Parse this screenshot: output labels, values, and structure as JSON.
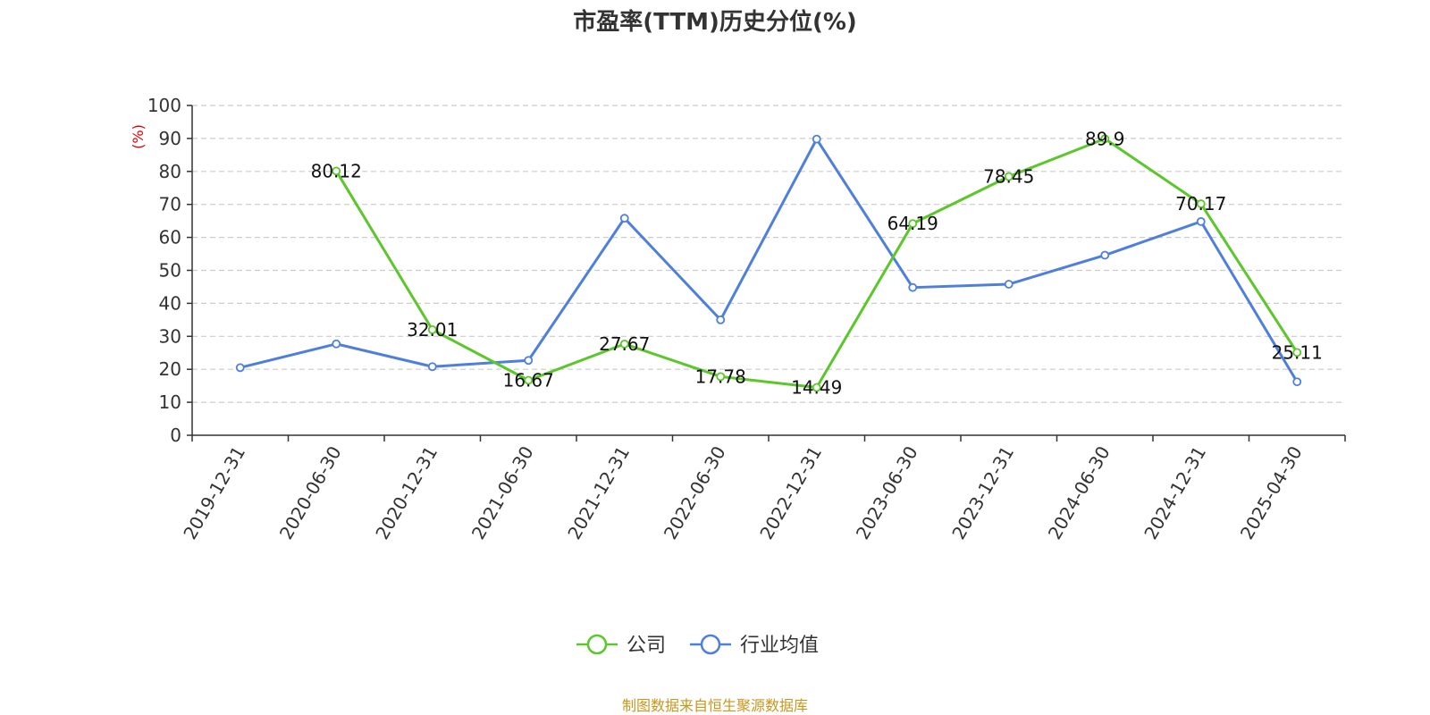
{
  "chart_data": {
    "type": "line",
    "title": "市盈率(TTM)历史分位(%)",
    "ylabel": "(%)",
    "ylim": [
      0,
      100
    ],
    "yticks": [
      0,
      10,
      20,
      30,
      40,
      50,
      60,
      70,
      80,
      90,
      100
    ],
    "grid": true,
    "legend_position": "bottom",
    "x": [
      "2019-12-31",
      "2020-06-30",
      "2020-12-31",
      "2021-06-30",
      "2021-12-31",
      "2022-06-30",
      "2022-12-31",
      "2023-06-30",
      "2023-12-31",
      "2024-06-30",
      "2024-12-31",
      "2025-04-30"
    ],
    "series": [
      {
        "name": "公司",
        "color": "#5cc72a",
        "values": [
          null,
          80.12,
          32.01,
          16.67,
          27.67,
          17.78,
          14.49,
          64.19,
          78.45,
          89.9,
          70.17,
          25.11
        ],
        "labels": [
          "",
          "80.12",
          "32.01",
          "16.67",
          "27.67",
          "17.78",
          "14.49",
          "64.19",
          "78.45",
          "89.9",
          "70.17",
          "25.11"
        ]
      },
      {
        "name": "行业均值",
        "color": "#4e7fdc",
        "values": [
          20.5,
          27.7,
          20.8,
          22.7,
          65.8,
          35.0,
          89.8,
          44.8,
          45.8,
          54.6,
          64.8,
          16.2
        ]
      }
    ]
  },
  "footer": {
    "source": "制图数据来自恒生聚源数据库"
  }
}
